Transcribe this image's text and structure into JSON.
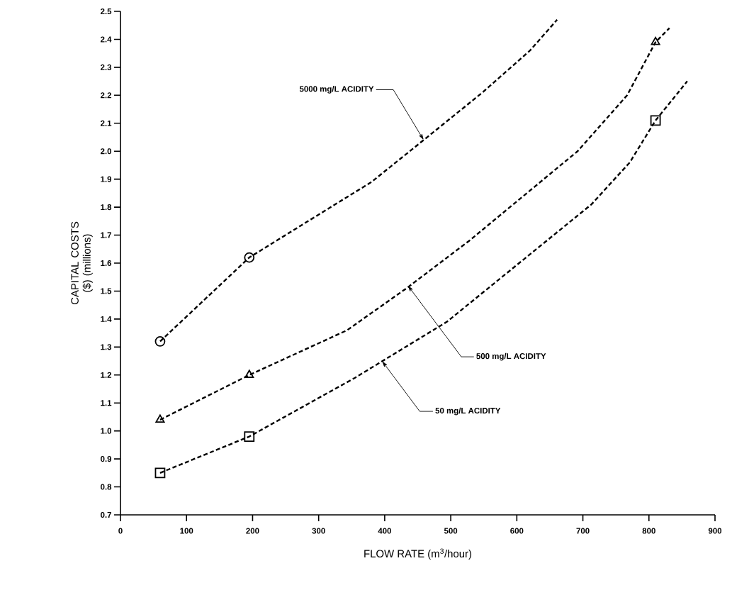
{
  "chart_data": {
    "type": "line",
    "xlabel": "FLOW RATE  (m$^{3}$/hour)",
    "ylabel": "CAPITAL COSTS ($) (millions)",
    "xlim": [
      0,
      900
    ],
    "ylim": [
      0.7,
      2.5
    ],
    "xticks": [
      0,
      100,
      200,
      300,
      400,
      500,
      600,
      700,
      800,
      900
    ],
    "yticks": [
      0.7,
      0.8,
      0.9,
      {
        "value": 1.0,
        "label": "1.0"
      },
      1.1,
      1.2,
      1.3,
      1.4,
      1.5,
      1.6,
      1.7,
      1.8,
      1.9,
      {
        "value": 2.0,
        "label": "2.0"
      },
      2.1,
      2.2,
      2.3,
      2.4,
      2.5
    ],
    "series": [
      {
        "color": "#000000",
        "marker": "none",
        "line_style": "dashed",
        "x": [
          60,
          195,
          284,
          380,
          459,
          548,
          620,
          661
        ],
        "values": [
          1.32,
          1.62,
          1.75,
          1.89,
          2.04,
          2.21,
          2.36,
          2.47
        ]
      },
      {
        "color": "#000000",
        "marker": "none",
        "line_style": "dashed",
        "x": [
          60,
          195,
          343,
          433,
          528,
          692,
          767,
          810,
          831
        ],
        "values": [
          1.04,
          1.2,
          1.36,
          1.51,
          1.68,
          2.0,
          2.2,
          2.39,
          2.44
        ]
      },
      {
        "color": "#000000",
        "marker": "none",
        "line_style": "dashed",
        "x": [
          60,
          195,
          355,
          494,
          713,
          771,
          810,
          858
        ],
        "values": [
          0.85,
          0.98,
          1.19,
          1.39,
          1.81,
          1.96,
          2.11,
          2.25
        ]
      },
      {
        "type": "scatter",
        "color": "#000000",
        "marker": "circle",
        "x": [
          60,
          195
        ],
        "values": [
          1.32,
          1.62
        ]
      },
      {
        "type": "scatter",
        "color": "#000000",
        "marker": "triangle",
        "x": [
          60,
          195,
          810
        ],
        "values": [
          1.04,
          1.2,
          2.39
        ]
      },
      {
        "type": "scatter",
        "color": "#000000",
        "marker": "square",
        "x": [
          60,
          195,
          810
        ],
        "values": [
          0.85,
          0.98,
          2.11
        ]
      }
    ],
    "annotations": [
      {
        "text": "5000 mg/L ACIDITY",
        "x": 459,
        "y": 2.04
      },
      {
        "text": "500 mg/L ACIDITY",
        "x": 435,
        "y": 1.52
      },
      {
        "text": "50 mg/L ACIDITY",
        "x": 396,
        "y": 1.25
      }
    ]
  }
}
